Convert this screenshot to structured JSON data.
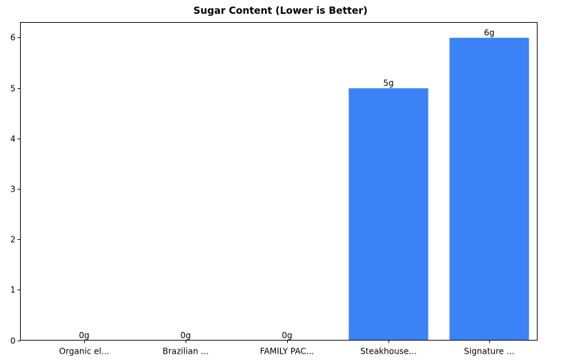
{
  "chart_data": {
    "type": "bar",
    "title": "Sugar Content (Lower is Better)",
    "xlabel": "",
    "ylabel": "",
    "categories": [
      "Organic el...",
      "Brazilian ...",
      "FAMILY PAC...",
      "Steakhouse...",
      "Signature ..."
    ],
    "values": [
      0,
      5e-324,
      0,
      5,
      6
    ],
    "data_labels": [
      "0g",
      "0g",
      "0g",
      "5g",
      "6g"
    ],
    "ylim": [
      0,
      6.3
    ],
    "yticks": [
      0,
      1,
      2,
      3,
      4,
      5,
      6
    ],
    "grid": false,
    "legend": null,
    "bar_color": "#3b82f6"
  }
}
